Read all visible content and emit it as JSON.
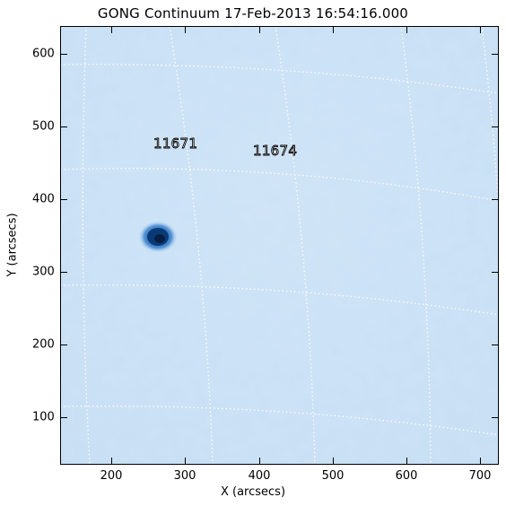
{
  "title": "GONG Continuum 17-Feb-2013 16:54:16.000",
  "x_axis": {
    "label": "X (arcsecs)",
    "ticks": [
      "200",
      "300",
      "400",
      "500",
      "600",
      "700"
    ]
  },
  "y_axis": {
    "label": "Y (arcsecs)",
    "ticks": [
      "100",
      "200",
      "300",
      "400",
      "500",
      "600"
    ]
  },
  "active_regions": [
    {
      "number": "11671"
    },
    {
      "number": "11674"
    }
  ],
  "colors": {
    "disk": "#cfe4f7",
    "sunspot_umbra": "#0a3a75",
    "sunspot_penumbra": "#2a6fc0",
    "grid": "#ffffff"
  }
}
